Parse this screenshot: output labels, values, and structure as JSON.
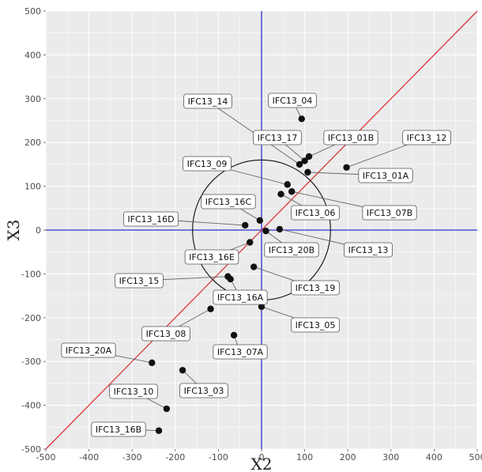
{
  "chart_data": {
    "type": "scatter",
    "title": "",
    "xlabel": "X2",
    "ylabel": "X3",
    "xlim": [
      -500,
      500
    ],
    "ylim": [
      -500,
      500
    ],
    "xticks": [
      "-500",
      "-400",
      "-300",
      "-200",
      "-100",
      "0",
      "100",
      "200",
      "300",
      "400",
      "500"
    ],
    "yticks": [
      "-500",
      "-400",
      "-300",
      "-200",
      "-100",
      "0",
      "100",
      "200",
      "300",
      "400",
      "500"
    ],
    "grid": true,
    "reference_lines": [
      {
        "kind": "vertical",
        "x": 0,
        "color": "#2a2fd1"
      },
      {
        "kind": "horizontal",
        "y": 0,
        "color": "#2a2fd1"
      },
      {
        "kind": "identity",
        "slope": 1,
        "color": "#d9363e"
      }
    ],
    "circle": {
      "center": [
        0,
        0
      ],
      "radius": 160,
      "color": "#111111"
    },
    "points": [
      {
        "label": "IFC13_04",
        "x": 93,
        "y": 254
      },
      {
        "label": "IFC13_14",
        "x": 88,
        "y": 150
      },
      {
        "label": "IFC13_17",
        "x": 100,
        "y": 158
      },
      {
        "label": "IFC13_01B",
        "x": 110,
        "y": 168
      },
      {
        "label": "IFC13_12",
        "x": 197,
        "y": 143
      },
      {
        "label": "IFC13_01A",
        "x": 107,
        "y": 132
      },
      {
        "label": "IFC13_09",
        "x": 60,
        "y": 104
      },
      {
        "label": "IFC13_07B",
        "x": 70,
        "y": 88
      },
      {
        "label": "IFC13_06",
        "x": 45,
        "y": 82
      },
      {
        "label": "IFC13_16C",
        "x": -4,
        "y": 22
      },
      {
        "label": "IFC13_16D",
        "x": -38,
        "y": 11
      },
      {
        "label": "IFC13_13",
        "x": 42,
        "y": 2
      },
      {
        "label": "IFC13_20B",
        "x": 10,
        "y": -2
      },
      {
        "label": "IFC13_16E",
        "x": -27,
        "y": -28
      },
      {
        "label": "IFC13_19",
        "x": -18,
        "y": -84
      },
      {
        "label": "IFC13_15",
        "x": -78,
        "y": -106
      },
      {
        "label": "IFC13_16A",
        "x": -72,
        "y": -112
      },
      {
        "label": "IFC13_05",
        "x": 0,
        "y": -175
      },
      {
        "label": "IFC13_08",
        "x": -118,
        "y": -180
      },
      {
        "label": "IFC13_07A",
        "x": -64,
        "y": -240
      },
      {
        "label": "IFC13_20A",
        "x": -254,
        "y": -303
      },
      {
        "label": "IFC13_03",
        "x": -183,
        "y": -320
      },
      {
        "label": "IFC13_10",
        "x": -220,
        "y": -408
      },
      {
        "label": "IFC13_16B",
        "x": -238,
        "y": -458
      }
    ]
  }
}
